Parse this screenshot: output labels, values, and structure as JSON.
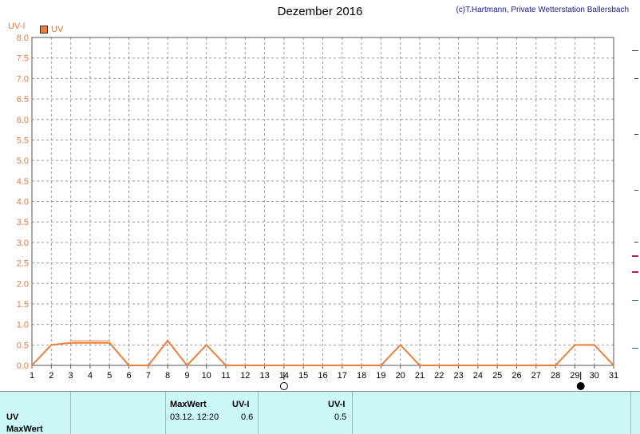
{
  "header": {
    "title": "Dezember 2016",
    "copyright": "(c)T.Hartmann, Private Wetterstation Ballersbach"
  },
  "chart_data": {
    "type": "line",
    "title": "Dezember 2016",
    "ylabel": "UV-I",
    "ylim": [
      0,
      8
    ],
    "yticks": [
      "0.0",
      "0.5",
      "1.0",
      "1.5",
      "2.0",
      "2.5",
      "3.0",
      "3.5",
      "4.0",
      "4.5",
      "5.0",
      "5.5",
      "6.0",
      "6.5",
      "7.0",
      "7.5",
      "8.0"
    ],
    "xlim": [
      1,
      31
    ],
    "xticks": [
      "1",
      "2",
      "3",
      "4",
      "5",
      "6",
      "7",
      "8",
      "9",
      "10",
      "11",
      "12",
      "13",
      "14",
      "15",
      "16",
      "17",
      "18",
      "19",
      "20",
      "21",
      "22",
      "23",
      "24",
      "25",
      "26",
      "27",
      "28",
      "29",
      "30",
      "31"
    ],
    "grid": true,
    "legend": "top-left",
    "series": [
      {
        "name": "UV",
        "color": "#ee7d3a",
        "x": [
          1,
          2,
          3,
          4,
          5,
          6,
          7,
          8,
          9,
          10,
          11,
          12,
          13,
          14,
          15,
          16,
          17,
          18,
          19,
          20,
          21,
          22,
          23,
          24,
          25,
          26,
          27,
          28,
          29,
          30,
          31
        ],
        "y": [
          0,
          0.5,
          0.55,
          0.55,
          0.55,
          0,
          0,
          0.6,
          0,
          0.5,
          0,
          0,
          0,
          0,
          0,
          0,
          0,
          0,
          0,
          0.5,
          0,
          0,
          0,
          0,
          0,
          0,
          0,
          0,
          0.5,
          0.5,
          0
        ],
        "max_envelope": {
          "x": [
            3,
            5
          ],
          "y": [
            0.6,
            0.6
          ]
        }
      }
    ],
    "moon_phases": [
      {
        "day": 14,
        "phase": "full",
        "icon": "full-moon-icon"
      },
      {
        "day": 29.3,
        "phase": "new",
        "icon": "new-moon-icon"
      }
    ]
  },
  "footer": {
    "row_labels": [
      "UV",
      "MaxWert"
    ],
    "col1_header": "MaxWert",
    "col2_header": "UV-I",
    "col3_header": "UV-I",
    "uv_max_date": "03.12.  12:20",
    "uv_max_value": "0.6",
    "uv_other_value": "0.5"
  }
}
